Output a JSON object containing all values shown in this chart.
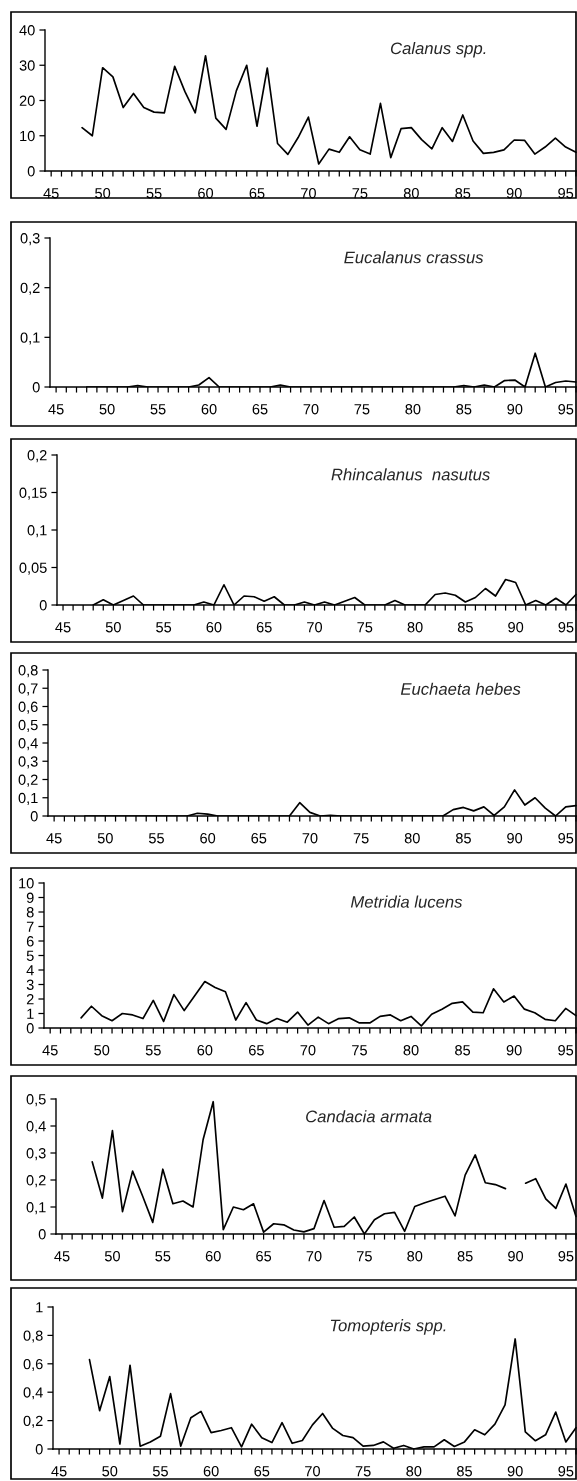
{
  "chart_data": [
    {
      "type": "line",
      "title": "Calanus spp.",
      "color": "#000000",
      "x": [
        48,
        49,
        50,
        51,
        52,
        53,
        54,
        55,
        56,
        57,
        58,
        59,
        60,
        61,
        62,
        63,
        64,
        65,
        66,
        67,
        68,
        69,
        70,
        71,
        72,
        73,
        74,
        75,
        76,
        77,
        78,
        79,
        80,
        81,
        82,
        83,
        84,
        85,
        86,
        87,
        88,
        89,
        90,
        91,
        92,
        93,
        94,
        95,
        96
      ],
      "values": [
        12.3,
        10,
        29.3,
        26.7,
        18,
        22,
        18,
        16.7,
        16.5,
        29.7,
        22.5,
        16.5,
        32.7,
        15,
        11.8,
        22.8,
        30,
        12.7,
        29.2,
        7.8,
        4.7,
        9.5,
        15.3,
        2,
        6.2,
        5.3,
        9.7,
        6,
        4.8,
        19.2,
        3.8,
        12,
        12.3,
        8.9,
        6.3,
        12.3,
        8.4,
        15.9,
        8.5,
        5,
        5.3,
        6,
        8.8,
        8.7,
        4.8,
        6.8,
        9.3,
        6.8,
        5.3
      ],
      "xlim": [
        44.4,
        96.1
      ],
      "xticks": [
        45,
        {
          "value": 46,
          "label": null
        },
        {
          "value": 47,
          "label": null
        },
        {
          "value": 48,
          "label": null
        },
        {
          "value": 49,
          "label": null
        },
        50,
        {
          "value": 51,
          "label": null
        },
        {
          "value": 52,
          "label": null
        },
        {
          "value": 53,
          "label": null
        },
        {
          "value": 54,
          "label": null
        },
        55,
        {
          "value": 56,
          "label": null
        },
        {
          "value": 57,
          "label": null
        },
        {
          "value": 58,
          "label": null
        },
        {
          "value": 59,
          "label": null
        },
        60,
        {
          "value": 61,
          "label": null
        },
        {
          "value": 62,
          "label": null
        },
        {
          "value": 63,
          "label": null
        },
        {
          "value": 64,
          "label": null
        },
        65,
        {
          "value": 66,
          "label": null
        },
        {
          "value": 67,
          "label": null
        },
        {
          "value": 68,
          "label": null
        },
        {
          "value": 69,
          "label": null
        },
        70,
        {
          "value": 71,
          "label": null
        },
        {
          "value": 72,
          "label": null
        },
        {
          "value": 73,
          "label": null
        },
        {
          "value": 74,
          "label": null
        },
        75,
        {
          "value": 76,
          "label": null
        },
        {
          "value": 77,
          "label": null
        },
        {
          "value": 78,
          "label": null
        },
        {
          "value": 79,
          "label": null
        },
        80,
        {
          "value": 81,
          "label": null
        },
        {
          "value": 82,
          "label": null
        },
        {
          "value": 83,
          "label": null
        },
        {
          "value": 84,
          "label": null
        },
        85,
        {
          "value": 86,
          "label": null
        },
        {
          "value": 87,
          "label": null
        },
        {
          "value": 88,
          "label": null
        },
        {
          "value": 89,
          "label": null
        },
        90,
        {
          "value": 91,
          "label": null
        },
        {
          "value": 92,
          "label": null
        },
        {
          "value": 93,
          "label": null
        },
        {
          "value": 94,
          "label": null
        },
        95,
        {
          "value": 96,
          "label": null
        }
      ],
      "ylim": [
        0,
        40
      ],
      "yticks": [
        0,
        10,
        20,
        30,
        40
      ]
    },
    {
      "type": "line",
      "title": "Eucalanus crassus",
      "color": "#000000",
      "x": [
        48,
        49,
        50,
        51,
        52,
        53,
        54,
        55,
        56,
        57,
        58,
        59,
        60,
        61,
        62,
        63,
        64,
        65,
        66,
        67,
        68,
        69,
        70,
        71,
        72,
        73,
        74,
        75,
        76,
        77,
        78,
        79,
        80,
        81,
        82,
        83,
        84,
        85,
        86,
        87,
        88,
        89,
        90,
        91,
        92,
        93,
        94,
        95,
        96
      ],
      "values": [
        0,
        0,
        0,
        0,
        0,
        0.003,
        0,
        0,
        0,
        0,
        0,
        0.004,
        0.019,
        0,
        0,
        0,
        0,
        0,
        0,
        0.004,
        0,
        0,
        0,
        0,
        0,
        0,
        0,
        0,
        0,
        0,
        0,
        0,
        0,
        0,
        0,
        0,
        0,
        0.003,
        0,
        0.004,
        0,
        0.013,
        0.014,
        0,
        0.068,
        0,
        0.009,
        0.012,
        0.01
      ],
      "xlim": [
        44.4,
        96.1
      ],
      "xticks": [
        45,
        {
          "value": 46,
          "label": null
        },
        {
          "value": 47,
          "label": null
        },
        {
          "value": 48,
          "label": null
        },
        {
          "value": 49,
          "label": null
        },
        50,
        {
          "value": 51,
          "label": null
        },
        {
          "value": 52,
          "label": null
        },
        {
          "value": 53,
          "label": null
        },
        {
          "value": 54,
          "label": null
        },
        55,
        {
          "value": 56,
          "label": null
        },
        {
          "value": 57,
          "label": null
        },
        {
          "value": 58,
          "label": null
        },
        {
          "value": 59,
          "label": null
        },
        60,
        {
          "value": 61,
          "label": null
        },
        {
          "value": 62,
          "label": null
        },
        {
          "value": 63,
          "label": null
        },
        {
          "value": 64,
          "label": null
        },
        65,
        {
          "value": 66,
          "label": null
        },
        {
          "value": 67,
          "label": null
        },
        {
          "value": 68,
          "label": null
        },
        {
          "value": 69,
          "label": null
        },
        70,
        {
          "value": 71,
          "label": null
        },
        {
          "value": 72,
          "label": null
        },
        {
          "value": 73,
          "label": null
        },
        {
          "value": 74,
          "label": null
        },
        75,
        {
          "value": 76,
          "label": null
        },
        {
          "value": 77,
          "label": null
        },
        {
          "value": 78,
          "label": null
        },
        {
          "value": 79,
          "label": null
        },
        80,
        {
          "value": 81,
          "label": null
        },
        {
          "value": 82,
          "label": null
        },
        {
          "value": 83,
          "label": null
        },
        {
          "value": 84,
          "label": null
        },
        85,
        {
          "value": 86,
          "label": null
        },
        {
          "value": 87,
          "label": null
        },
        {
          "value": 88,
          "label": null
        },
        {
          "value": 89,
          "label": null
        },
        90,
        {
          "value": 91,
          "label": null
        },
        {
          "value": 92,
          "label": null
        },
        {
          "value": 93,
          "label": null
        },
        {
          "value": 94,
          "label": null
        },
        95,
        {
          "value": 96,
          "label": null
        }
      ],
      "ylim": [
        0,
        0.3
      ],
      "yticks": [
        0,
        {
          "value": 0.1,
          "label": "0,1"
        },
        {
          "value": 0.2,
          "label": "0,2"
        },
        {
          "value": 0.3,
          "label": "0,3"
        }
      ]
    },
    {
      "type": "line",
      "title": "Rhincalanus  nasutus",
      "color": "#000000",
      "x": [
        48,
        49,
        50,
        51,
        52,
        53,
        54,
        55,
        56,
        57,
        58,
        59,
        60,
        61,
        62,
        63,
        64,
        65,
        66,
        67,
        68,
        69,
        70,
        71,
        72,
        73,
        74,
        75,
        76,
        77,
        78,
        79,
        80,
        81,
        82,
        83,
        84,
        85,
        86,
        87,
        88,
        89,
        90,
        91,
        92,
        93,
        94,
        95,
        96
      ],
      "values": [
        0,
        0.007,
        0,
        0.006,
        0.012,
        0,
        0,
        0,
        0,
        0,
        0,
        0.004,
        0,
        0.027,
        0,
        0.012,
        0.011,
        0.005,
        0.011,
        0,
        0,
        0.004,
        0,
        0.004,
        0,
        0.005,
        0.01,
        0,
        0,
        0,
        0.006,
        0,
        0,
        0,
        0.014,
        0.016,
        0.013,
        0.004,
        0.01,
        0.022,
        0.012,
        0.034,
        0.03,
        0,
        0.006,
        0,
        0.009,
        0,
        0.014
      ],
      "xlim": [
        44.4,
        96.1
      ],
      "xticks": [
        45,
        {
          "value": 46,
          "label": null
        },
        {
          "value": 47,
          "label": null
        },
        {
          "value": 48,
          "label": null
        },
        {
          "value": 49,
          "label": null
        },
        50,
        {
          "value": 51,
          "label": null
        },
        {
          "value": 52,
          "label": null
        },
        {
          "value": 53,
          "label": null
        },
        {
          "value": 54,
          "label": null
        },
        55,
        {
          "value": 56,
          "label": null
        },
        {
          "value": 57,
          "label": null
        },
        {
          "value": 58,
          "label": null
        },
        {
          "value": 59,
          "label": null
        },
        60,
        {
          "value": 61,
          "label": null
        },
        {
          "value": 62,
          "label": null
        },
        {
          "value": 63,
          "label": null
        },
        {
          "value": 64,
          "label": null
        },
        65,
        {
          "value": 66,
          "label": null
        },
        {
          "value": 67,
          "label": null
        },
        {
          "value": 68,
          "label": null
        },
        {
          "value": 69,
          "label": null
        },
        70,
        {
          "value": 71,
          "label": null
        },
        {
          "value": 72,
          "label": null
        },
        {
          "value": 73,
          "label": null
        },
        {
          "value": 74,
          "label": null
        },
        75,
        {
          "value": 76,
          "label": null
        },
        {
          "value": 77,
          "label": null
        },
        {
          "value": 78,
          "label": null
        },
        {
          "value": 79,
          "label": null
        },
        80,
        {
          "value": 81,
          "label": null
        },
        {
          "value": 82,
          "label": null
        },
        {
          "value": 83,
          "label": null
        },
        {
          "value": 84,
          "label": null
        },
        85,
        {
          "value": 86,
          "label": null
        },
        {
          "value": 87,
          "label": null
        },
        {
          "value": 88,
          "label": null
        },
        {
          "value": 89,
          "label": null
        },
        90,
        {
          "value": 91,
          "label": null
        },
        {
          "value": 92,
          "label": null
        },
        {
          "value": 93,
          "label": null
        },
        {
          "value": 94,
          "label": null
        },
        95,
        {
          "value": 96,
          "label": null
        }
      ],
      "ylim": [
        0,
        0.2
      ],
      "yticks": [
        0,
        {
          "value": 0.05,
          "label": "0,05"
        },
        {
          "value": 0.1,
          "label": "0,1"
        },
        {
          "value": 0.15,
          "label": "0,15"
        },
        {
          "value": 0.2,
          "label": "0,2"
        }
      ]
    },
    {
      "type": "line",
      "title": "Euchaeta hebes",
      "color": "#000000",
      "x": [
        48,
        49,
        50,
        51,
        52,
        53,
        54,
        55,
        56,
        57,
        58,
        59,
        60,
        61,
        62,
        63,
        64,
        65,
        66,
        67,
        68,
        69,
        70,
        71,
        72,
        73,
        74,
        75,
        76,
        77,
        78,
        79,
        80,
        81,
        82,
        83,
        84,
        85,
        86,
        87,
        88,
        89,
        90,
        91,
        92,
        93,
        94,
        95,
        96
      ],
      "values": [
        0,
        0,
        0,
        0,
        0,
        0,
        0,
        0,
        0,
        0,
        0,
        0.015,
        0.01,
        0,
        0,
        0,
        0,
        0,
        0,
        0,
        0,
        0.073,
        0.02,
        0,
        0.003,
        0,
        0,
        0,
        0,
        0,
        0,
        0,
        0,
        0,
        0,
        0,
        0.035,
        0.047,
        0.028,
        0.05,
        0.003,
        0.05,
        0.143,
        0.06,
        0.1,
        0.043,
        0,
        0.05,
        0.057
      ],
      "xlim": [
        44.4,
        96.1
      ],
      "xticks": [
        45,
        {
          "value": 46,
          "label": null
        },
        {
          "value": 47,
          "label": null
        },
        {
          "value": 48,
          "label": null
        },
        {
          "value": 49,
          "label": null
        },
        50,
        {
          "value": 51,
          "label": null
        },
        {
          "value": 52,
          "label": null
        },
        {
          "value": 53,
          "label": null
        },
        {
          "value": 54,
          "label": null
        },
        55,
        {
          "value": 56,
          "label": null
        },
        {
          "value": 57,
          "label": null
        },
        {
          "value": 58,
          "label": null
        },
        {
          "value": 59,
          "label": null
        },
        60,
        {
          "value": 61,
          "label": null
        },
        {
          "value": 62,
          "label": null
        },
        {
          "value": 63,
          "label": null
        },
        {
          "value": 64,
          "label": null
        },
        65,
        {
          "value": 66,
          "label": null
        },
        {
          "value": 67,
          "label": null
        },
        {
          "value": 68,
          "label": null
        },
        {
          "value": 69,
          "label": null
        },
        70,
        {
          "value": 71,
          "label": null
        },
        {
          "value": 72,
          "label": null
        },
        {
          "value": 73,
          "label": null
        },
        {
          "value": 74,
          "label": null
        },
        75,
        {
          "value": 76,
          "label": null
        },
        {
          "value": 77,
          "label": null
        },
        {
          "value": 78,
          "label": null
        },
        {
          "value": 79,
          "label": null
        },
        80,
        {
          "value": 81,
          "label": null
        },
        {
          "value": 82,
          "label": null
        },
        {
          "value": 83,
          "label": null
        },
        {
          "value": 84,
          "label": null
        },
        85,
        {
          "value": 86,
          "label": null
        },
        {
          "value": 87,
          "label": null
        },
        {
          "value": 88,
          "label": null
        },
        {
          "value": 89,
          "label": null
        },
        90,
        {
          "value": 91,
          "label": null
        },
        {
          "value": 92,
          "label": null
        },
        {
          "value": 93,
          "label": null
        },
        {
          "value": 94,
          "label": null
        },
        95,
        {
          "value": 96,
          "label": null
        }
      ],
      "ylim": [
        0,
        0.8
      ],
      "yticks": [
        0,
        {
          "value": 0.1,
          "label": "0,1"
        },
        {
          "value": 0.2,
          "label": "0,2"
        },
        {
          "value": 0.3,
          "label": "0,3"
        },
        {
          "value": 0.4,
          "label": "0,4"
        },
        {
          "value": 0.5,
          "label": "0,5"
        },
        {
          "value": 0.6,
          "label": "0,6"
        },
        {
          "value": 0.7,
          "label": "0,7"
        },
        {
          "value": 0.8,
          "label": "0,8"
        }
      ]
    },
    {
      "type": "line",
      "title": "Metridia lucens",
      "color": "#000000",
      "x": [
        48,
        49,
        50,
        51,
        52,
        53,
        54,
        55,
        56,
        57,
        58,
        59,
        60,
        61,
        62,
        63,
        64,
        65,
        66,
        67,
        68,
        69,
        70,
        71,
        72,
        73,
        74,
        75,
        76,
        77,
        78,
        79,
        80,
        81,
        82,
        83,
        84,
        85,
        86,
        87,
        88,
        89,
        90,
        91,
        92,
        93,
        94,
        95,
        96
      ],
      "values": [
        0.7,
        1.5,
        0.85,
        0.5,
        1.0,
        0.9,
        0.65,
        1.9,
        0.45,
        2.3,
        1.2,
        2.2,
        3.2,
        2.8,
        2.5,
        0.55,
        1.75,
        0.55,
        0.3,
        0.65,
        0.4,
        1.1,
        0.2,
        0.75,
        0.3,
        0.65,
        0.7,
        0.35,
        0.35,
        0.8,
        0.9,
        0.5,
        0.8,
        0.15,
        0.95,
        1.3,
        1.7,
        1.8,
        1.1,
        1.05,
        2.7,
        1.8,
        2.2,
        1.3,
        1.05,
        0.6,
        0.5,
        1.35,
        0.85
      ],
      "xlim": [
        44.4,
        96.1
      ],
      "xticks": [
        45,
        {
          "value": 46,
          "label": null
        },
        {
          "value": 47,
          "label": null
        },
        {
          "value": 48,
          "label": null
        },
        {
          "value": 49,
          "label": null
        },
        50,
        {
          "value": 51,
          "label": null
        },
        {
          "value": 52,
          "label": null
        },
        {
          "value": 53,
          "label": null
        },
        {
          "value": 54,
          "label": null
        },
        55,
        {
          "value": 56,
          "label": null
        },
        {
          "value": 57,
          "label": null
        },
        {
          "value": 58,
          "label": null
        },
        {
          "value": 59,
          "label": null
        },
        60,
        {
          "value": 61,
          "label": null
        },
        {
          "value": 62,
          "label": null
        },
        {
          "value": 63,
          "label": null
        },
        {
          "value": 64,
          "label": null
        },
        65,
        {
          "value": 66,
          "label": null
        },
        {
          "value": 67,
          "label": null
        },
        {
          "value": 68,
          "label": null
        },
        {
          "value": 69,
          "label": null
        },
        70,
        {
          "value": 71,
          "label": null
        },
        {
          "value": 72,
          "label": null
        },
        {
          "value": 73,
          "label": null
        },
        {
          "value": 74,
          "label": null
        },
        75,
        {
          "value": 76,
          "label": null
        },
        {
          "value": 77,
          "label": null
        },
        {
          "value": 78,
          "label": null
        },
        {
          "value": 79,
          "label": null
        },
        80,
        {
          "value": 81,
          "label": null
        },
        {
          "value": 82,
          "label": null
        },
        {
          "value": 83,
          "label": null
        },
        {
          "value": 84,
          "label": null
        },
        85,
        {
          "value": 86,
          "label": null
        },
        {
          "value": 87,
          "label": null
        },
        {
          "value": 88,
          "label": null
        },
        {
          "value": 89,
          "label": null
        },
        90,
        {
          "value": 91,
          "label": null
        },
        {
          "value": 92,
          "label": null
        },
        {
          "value": 93,
          "label": null
        },
        {
          "value": 94,
          "label": null
        },
        95,
        {
          "value": 96,
          "label": null
        }
      ],
      "ylim": [
        0,
        10
      ],
      "yticks": [
        0,
        1,
        2,
        3,
        4,
        5,
        6,
        7,
        8,
        9,
        10
      ]
    },
    {
      "type": "line",
      "title": "Candacia armata",
      "color": "#000000",
      "x": [
        48,
        49,
        50,
        51,
        52,
        53,
        54,
        55,
        56,
        57,
        58,
        59,
        60,
        61,
        62,
        63,
        64,
        65,
        66,
        67,
        68,
        69,
        70,
        71,
        72,
        73,
        74,
        75,
        76,
        77,
        78,
        79,
        80,
        81,
        82,
        83,
        84,
        85,
        86,
        87,
        88,
        89,
        90,
        91,
        92,
        93,
        94,
        95,
        96
      ],
      "values": [
        0.267,
        0.133,
        0.383,
        0.083,
        0.233,
        0.14,
        0.043,
        0.24,
        0.112,
        0.122,
        0.1,
        0.35,
        0.49,
        0.016,
        0.1,
        0.09,
        0.112,
        0.007,
        0.038,
        0.034,
        0.015,
        0.008,
        0.02,
        0.124,
        0.025,
        0.028,
        0.063,
        0,
        0.053,
        0.075,
        0.08,
        0.01,
        0.102,
        0.116,
        0.128,
        0.14,
        0.067,
        0.218,
        0.293,
        0.19,
        0.183,
        0.168,
        null,
        0.188,
        0.205,
        0.13,
        0.095,
        0.185,
        0.065
      ],
      "xlim": [
        44.4,
        96.1
      ],
      "xticks": [
        45,
        {
          "value": 46,
          "label": null
        },
        {
          "value": 47,
          "label": null
        },
        {
          "value": 48,
          "label": null
        },
        {
          "value": 49,
          "label": null
        },
        50,
        {
          "value": 51,
          "label": null
        },
        {
          "value": 52,
          "label": null
        },
        {
          "value": 53,
          "label": null
        },
        {
          "value": 54,
          "label": null
        },
        55,
        {
          "value": 56,
          "label": null
        },
        {
          "value": 57,
          "label": null
        },
        {
          "value": 58,
          "label": null
        },
        {
          "value": 59,
          "label": null
        },
        60,
        {
          "value": 61,
          "label": null
        },
        {
          "value": 62,
          "label": null
        },
        {
          "value": 63,
          "label": null
        },
        {
          "value": 64,
          "label": null
        },
        65,
        {
          "value": 66,
          "label": null
        },
        {
          "value": 67,
          "label": null
        },
        {
          "value": 68,
          "label": null
        },
        {
          "value": 69,
          "label": null
        },
        70,
        {
          "value": 71,
          "label": null
        },
        {
          "value": 72,
          "label": null
        },
        {
          "value": 73,
          "label": null
        },
        {
          "value": 74,
          "label": null
        },
        75,
        {
          "value": 76,
          "label": null
        },
        {
          "value": 77,
          "label": null
        },
        {
          "value": 78,
          "label": null
        },
        {
          "value": 79,
          "label": null
        },
        80,
        {
          "value": 81,
          "label": null
        },
        {
          "value": 82,
          "label": null
        },
        {
          "value": 83,
          "label": null
        },
        {
          "value": 84,
          "label": null
        },
        85,
        {
          "value": 86,
          "label": null
        },
        {
          "value": 87,
          "label": null
        },
        {
          "value": 88,
          "label": null
        },
        {
          "value": 89,
          "label": null
        },
        90,
        {
          "value": 91,
          "label": null
        },
        {
          "value": 92,
          "label": null
        },
        {
          "value": 93,
          "label": null
        },
        {
          "value": 94,
          "label": null
        },
        95,
        {
          "value": 96,
          "label": null
        }
      ],
      "ylim": [
        0,
        0.5
      ],
      "yticks": [
        0,
        {
          "value": 0.1,
          "label": "0,1"
        },
        {
          "value": 0.2,
          "label": "0,2"
        },
        {
          "value": 0.3,
          "label": "0,3"
        },
        {
          "value": 0.4,
          "label": "0,4"
        },
        {
          "value": 0.5,
          "label": "0,5"
        }
      ]
    },
    {
      "type": "line",
      "title": "Tomopteris spp.",
      "color": "#000000",
      "x": [
        48,
        49,
        50,
        51,
        52,
        53,
        54,
        55,
        56,
        57,
        58,
        59,
        60,
        61,
        62,
        63,
        64,
        65,
        66,
        67,
        68,
        69,
        70,
        71,
        72,
        73,
        74,
        75,
        76,
        77,
        78,
        79,
        80,
        81,
        82,
        83,
        84,
        85,
        86,
        87,
        88,
        89,
        90,
        91,
        92,
        93,
        94,
        95,
        96
      ],
      "values": [
        0.63,
        0.27,
        0.51,
        0.035,
        0.59,
        0.02,
        0.05,
        0.09,
        0.39,
        0.02,
        0.22,
        0.265,
        0.115,
        0.13,
        0.15,
        0.015,
        0.175,
        0.08,
        0.045,
        0.185,
        0.04,
        0.06,
        0.17,
        0.25,
        0.145,
        0.095,
        0.08,
        0.02,
        0.025,
        0.05,
        0.005,
        0.025,
        0,
        0.015,
        0.015,
        0.065,
        0.018,
        0.05,
        0.135,
        0.1,
        0.175,
        0.31,
        0.775,
        0.12,
        0.058,
        0.1,
        0.26,
        0.05,
        0.15
      ],
      "xlim": [
        44.4,
        96.1
      ],
      "xticks": [
        45,
        {
          "value": 46,
          "label": null
        },
        {
          "value": 47,
          "label": null
        },
        {
          "value": 48,
          "label": null
        },
        {
          "value": 49,
          "label": null
        },
        50,
        {
          "value": 51,
          "label": null
        },
        {
          "value": 52,
          "label": null
        },
        {
          "value": 53,
          "label": null
        },
        {
          "value": 54,
          "label": null
        },
        55,
        {
          "value": 56,
          "label": null
        },
        {
          "value": 57,
          "label": null
        },
        {
          "value": 58,
          "label": null
        },
        {
          "value": 59,
          "label": null
        },
        60,
        {
          "value": 61,
          "label": null
        },
        {
          "value": 62,
          "label": null
        },
        {
          "value": 63,
          "label": null
        },
        {
          "value": 64,
          "label": null
        },
        65,
        {
          "value": 66,
          "label": null
        },
        {
          "value": 67,
          "label": null
        },
        {
          "value": 68,
          "label": null
        },
        {
          "value": 69,
          "label": null
        },
        70,
        {
          "value": 71,
          "label": null
        },
        {
          "value": 72,
          "label": null
        },
        {
          "value": 73,
          "label": null
        },
        {
          "value": 74,
          "label": null
        },
        75,
        {
          "value": 76,
          "label": null
        },
        {
          "value": 77,
          "label": null
        },
        {
          "value": 78,
          "label": null
        },
        {
          "value": 79,
          "label": null
        },
        80,
        {
          "value": 81,
          "label": null
        },
        {
          "value": 82,
          "label": null
        },
        {
          "value": 83,
          "label": null
        },
        {
          "value": 84,
          "label": null
        },
        85,
        {
          "value": 86,
          "label": null
        },
        {
          "value": 87,
          "label": null
        },
        {
          "value": 88,
          "label": null
        },
        {
          "value": 89,
          "label": null
        },
        90,
        {
          "value": 91,
          "label": null
        },
        {
          "value": 92,
          "label": null
        },
        {
          "value": 93,
          "label": null
        },
        {
          "value": 94,
          "label": null
        },
        95,
        {
          "value": 96,
          "label": null
        }
      ],
      "ylim": [
        0,
        1
      ],
      "yticks": [
        0,
        {
          "value": 0.2,
          "label": "0,2"
        },
        {
          "value": 0.4,
          "label": "0,4"
        },
        {
          "value": 0.6,
          "label": "0,6"
        },
        {
          "value": 0.8,
          "label": "0,8"
        },
        1
      ]
    }
  ]
}
